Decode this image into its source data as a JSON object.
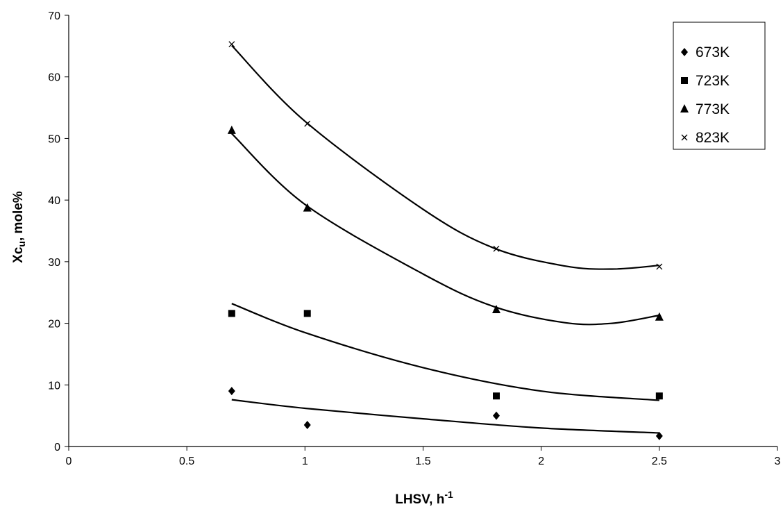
{
  "chart_data": {
    "type": "scatter",
    "title": "",
    "xlabel": "LHSV, h",
    "xlabel_sup": "-1",
    "ylabel": "Xcu, mole%",
    "ylabel_parts": {
      "main": "Xc",
      "sub": "u",
      "rest": ", mole%"
    },
    "xlim": [
      0,
      3
    ],
    "ylim": [
      0,
      70
    ],
    "xticks": [
      0,
      0.5,
      1,
      1.5,
      2,
      2.5,
      3
    ],
    "xtick_labels": [
      "0",
      "0.5",
      "1",
      "1.5",
      "2",
      "2.5",
      "3"
    ],
    "yticks": [
      0,
      10,
      20,
      30,
      40,
      50,
      60,
      70
    ],
    "ytick_labels": [
      "0",
      "10",
      "20",
      "30",
      "40",
      "50",
      "60",
      "70"
    ],
    "grid": false,
    "legend_position": "top-right",
    "x": [
      0.69,
      1.01,
      1.81,
      2.5
    ],
    "series": [
      {
        "name": "673K",
        "marker": "diamond",
        "values": [
          9.0,
          3.5,
          5.0,
          1.7
        ],
        "trend": [
          [
            0.69,
            7.6
          ],
          [
            1.0,
            6.2
          ],
          [
            1.5,
            4.5
          ],
          [
            2.0,
            3.0
          ],
          [
            2.5,
            2.2
          ]
        ]
      },
      {
        "name": "723K",
        "marker": "square",
        "values": [
          21.6,
          21.6,
          8.2,
          8.2
        ],
        "trend": [
          [
            0.69,
            23.2
          ],
          [
            1.0,
            18.5
          ],
          [
            1.5,
            12.8
          ],
          [
            2.0,
            9.0
          ],
          [
            2.5,
            7.5
          ]
        ]
      },
      {
        "name": "773K",
        "marker": "triangle",
        "values": [
          51.3,
          38.7,
          22.2,
          21.0
        ],
        "trend": [
          [
            0.69,
            50.8
          ],
          [
            1.0,
            39.3
          ],
          [
            1.5,
            28.0
          ],
          [
            1.8,
            22.7
          ],
          [
            2.1,
            20.1
          ],
          [
            2.3,
            20.0
          ],
          [
            2.5,
            21.3
          ]
        ]
      },
      {
        "name": "823K",
        "marker": "cross",
        "values": [
          65.3,
          52.4,
          32.1,
          29.2
        ],
        "trend": [
          [
            0.69,
            65.1
          ],
          [
            1.0,
            52.8
          ],
          [
            1.5,
            38.5
          ],
          [
            1.8,
            32.2
          ],
          [
            2.1,
            29.3
          ],
          [
            2.3,
            28.8
          ],
          [
            2.5,
            29.4
          ]
        ]
      }
    ]
  }
}
